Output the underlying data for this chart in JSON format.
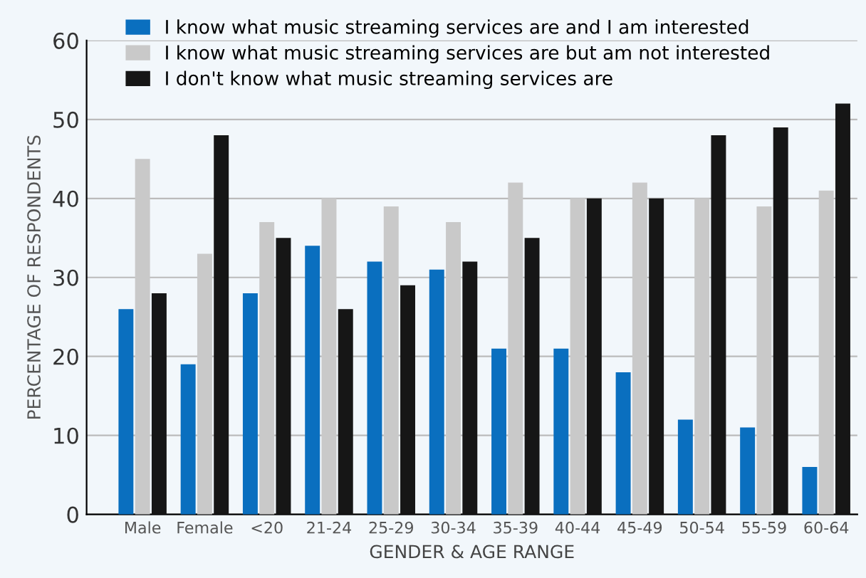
{
  "chart_data": {
    "type": "bar",
    "xlabel": "GENDER & AGE RANGE",
    "ylabel": "PERCENTAGE OF RESPONDENTS",
    "categories": [
      "Male",
      "Female",
      "<20",
      "21-24",
      "25-29",
      "30-34",
      "35-39",
      "40-44",
      "45-49",
      "50-54",
      "55-59",
      "60-64"
    ],
    "series": [
      {
        "name": "I know what music streaming services are and I am interested",
        "color": "#0a6fbf",
        "values": [
          26,
          19,
          28,
          34,
          32,
          31,
          21,
          21,
          18,
          12,
          11,
          6
        ]
      },
      {
        "name": "I know what music streaming services are but am not interested",
        "color": "#c9c9c9",
        "values": [
          45,
          33,
          37,
          40,
          39,
          37,
          42,
          40,
          42,
          40,
          39,
          41
        ]
      },
      {
        "name": "I don't know what music streaming services are",
        "color": "#161616",
        "values": [
          28,
          48,
          35,
          26,
          29,
          32,
          35,
          40,
          40,
          48,
          49,
          52
        ]
      }
    ],
    "ylim": [
      0,
      60
    ],
    "yticks": [
      0,
      10,
      20,
      30,
      40,
      50,
      60
    ],
    "grid": "y",
    "legend": "top left"
  }
}
